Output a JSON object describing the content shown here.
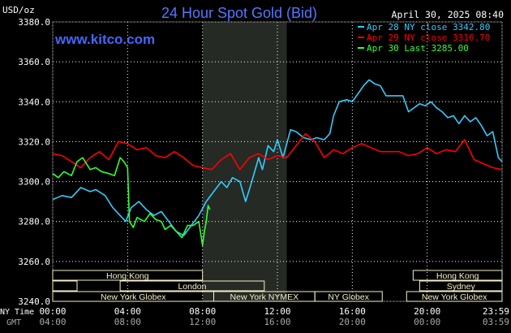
{
  "header": {
    "title": "24 Hour Spot Gold (Bid)",
    "unit": "USD/oz",
    "datetime": "April 30, 2025 08:40",
    "website": "www.kitco.com"
  },
  "legend": [
    {
      "label": "Apr 28 NY close 3342.80",
      "color": "#33ccff"
    },
    {
      "label": "Apr 29 NY close 3316.70",
      "color": "#ff0000"
    },
    {
      "label": "Apr 30 Last 3285.00",
      "color": "#33ff33"
    }
  ],
  "colors": {
    "grid": "#ffffff",
    "session_box": "#f5f0c8",
    "session_text": "#000000",
    "highlight": "#252a25"
  },
  "axis_footer": {
    "ny_label": "NY Time",
    "gmt_label": "GMT"
  },
  "sessions": [
    {
      "label": "Hong Kong",
      "start": 0,
      "end": 8,
      "row": 0
    },
    {
      "label": "Hong Kong",
      "start": 19.25,
      "end": 24,
      "row": 0
    },
    {
      "label": "",
      "start": 0,
      "end": 1.3,
      "row": 1
    },
    {
      "label": "London",
      "start": 3.6,
      "end": 11.3,
      "row": 1
    },
    {
      "label": "Sydney",
      "start": 19.6,
      "end": 24,
      "row": 1
    },
    {
      "label": "New York Globex",
      "start": 0,
      "end": 8.6,
      "row": 2
    },
    {
      "label": "New York NYMEX",
      "start": 8.6,
      "end": 14,
      "row": 2
    },
    {
      "label": "NY Globex",
      "start": 14,
      "end": 17.6,
      "row": 2
    },
    {
      "label": "New York Globex",
      "start": 18.9,
      "end": 24,
      "row": 2
    }
  ],
  "chart_data": {
    "type": "line",
    "title": "24 Hour Spot Gold (Bid)",
    "ylabel": "USD/oz",
    "ylim": [
      3240,
      3380
    ],
    "xlim": [
      0,
      24
    ],
    "yticks": [
      3240,
      3260,
      3280,
      3300,
      3320,
      3340,
      3360,
      3380
    ],
    "ytick_labels": [
      "3240.0",
      "3260.0",
      "3280.0",
      "3300.0",
      "3320.0",
      "3340.0",
      "3360.0",
      "3380.0"
    ],
    "xticks": [
      0,
      4,
      8,
      12,
      16,
      20,
      24
    ],
    "xtick_labels_ny": [
      "00:00",
      "04:00",
      "08:00",
      "12:00",
      "16:00",
      "20:00",
      "23:59"
    ],
    "xtick_labels_gmt": [
      "04:00",
      "08:00",
      "12:00",
      "16:00",
      "20:00",
      "00:00",
      "03:59"
    ],
    "highlight_range": [
      8,
      12.5
    ],
    "grid": true,
    "legend_position": "top-right",
    "series": [
      {
        "name": "Apr 28 NY close 3342.80",
        "color": "#33ccff",
        "x": [
          0,
          0.5,
          1,
          1.5,
          2,
          2.3,
          2.8,
          3.2,
          3.6,
          3.9,
          4.2,
          4.6,
          5,
          5.4,
          5.8,
          6.2,
          6.6,
          7,
          7.4,
          7.8,
          8.2,
          8.6,
          9,
          9.3,
          9.6,
          10,
          10.3,
          10.6,
          11,
          11.2,
          11.5,
          11.8,
          12,
          12.3,
          12.7,
          13,
          13.4,
          13.8,
          14.1,
          14.5,
          14.8,
          15,
          15.3,
          15.7,
          16,
          16.3,
          16.6,
          16.9,
          17.2,
          17.5,
          17.8,
          18.1,
          18.4,
          18.7,
          19,
          19.3,
          19.6,
          19.9,
          20.2,
          20.5,
          20.8,
          21.1,
          21.4,
          21.7,
          22,
          22.3,
          22.6,
          22.9,
          23.2,
          23.5,
          23.8,
          24
        ],
        "y": [
          3291,
          3293,
          3292,
          3297,
          3295,
          3296,
          3293,
          3287,
          3283,
          3280,
          3287,
          3290,
          3286,
          3283,
          3285,
          3280,
          3275,
          3273,
          3278,
          3283,
          3290,
          3295,
          3300,
          3297,
          3302,
          3300,
          3290,
          3299,
          3312,
          3306,
          3318,
          3315,
          3321,
          3312,
          3326,
          3325,
          3322,
          3321,
          3322,
          3321,
          3324,
          3333,
          3340,
          3341,
          3340,
          3344,
          3348,
          3351,
          3349,
          3348,
          3343,
          3343,
          3343,
          3343,
          3335,
          3337,
          3339,
          3338,
          3340,
          3337,
          3335,
          3332,
          3333,
          3329,
          3333,
          3330,
          3332,
          3328,
          3323,
          3325,
          3312,
          3310
        ]
      },
      {
        "name": "Apr 29 NY close 3316.70",
        "color": "#ff0000",
        "x": [
          0,
          0.5,
          1,
          1.5,
          2,
          2.5,
          3,
          3.5,
          4,
          4.5,
          5,
          5.5,
          6,
          6.5,
          7,
          7.5,
          8,
          8.5,
          9,
          9.5,
          10,
          10.5,
          11,
          11.5,
          12,
          12.5,
          13,
          13.5,
          14,
          14.5,
          15,
          15.5,
          16,
          16.5,
          17,
          17.5,
          18,
          18.5,
          19,
          19.5,
          20,
          20.5,
          21,
          21.5,
          22,
          22.5,
          23,
          23.5,
          24
        ],
        "y": [
          3314,
          3313,
          3310,
          3307,
          3312,
          3315,
          3311,
          3320,
          3319,
          3316,
          3317,
          3313,
          3312,
          3315,
          3312,
          3308,
          3307,
          3306,
          3311,
          3314,
          3306,
          3312,
          3314,
          3311,
          3313,
          3312,
          3318,
          3324,
          3320,
          3312,
          3316,
          3314,
          3317,
          3319,
          3317,
          3315,
          3315,
          3315,
          3313,
          3314,
          3317,
          3314,
          3316,
          3315,
          3321,
          3311,
          3309,
          3307,
          3306
        ]
      },
      {
        "name": "Apr 30 Last 3285.00",
        "color": "#33ff33",
        "x": [
          0,
          0.3,
          0.6,
          1,
          1.3,
          1.6,
          2,
          2.3,
          2.6,
          3,
          3.3,
          3.6,
          3.8,
          4,
          4.1,
          4.3,
          4.5,
          4.7,
          4.9,
          5.2,
          5.5,
          5.8,
          6,
          6.3,
          6.6,
          6.9,
          7.2,
          7.5,
          7.8,
          8,
          8.1,
          8.2,
          8.3,
          8.4
        ],
        "y": [
          3304,
          3302,
          3305,
          3303,
          3310,
          3312,
          3306,
          3307,
          3305,
          3304,
          3303,
          3312,
          3310,
          3307,
          3280,
          3277,
          3282,
          3281,
          3280,
          3284,
          3281,
          3280,
          3276,
          3278,
          3275,
          3272,
          3278,
          3278,
          3280,
          3268,
          3275,
          3280,
          3288,
          3286
        ]
      }
    ]
  }
}
